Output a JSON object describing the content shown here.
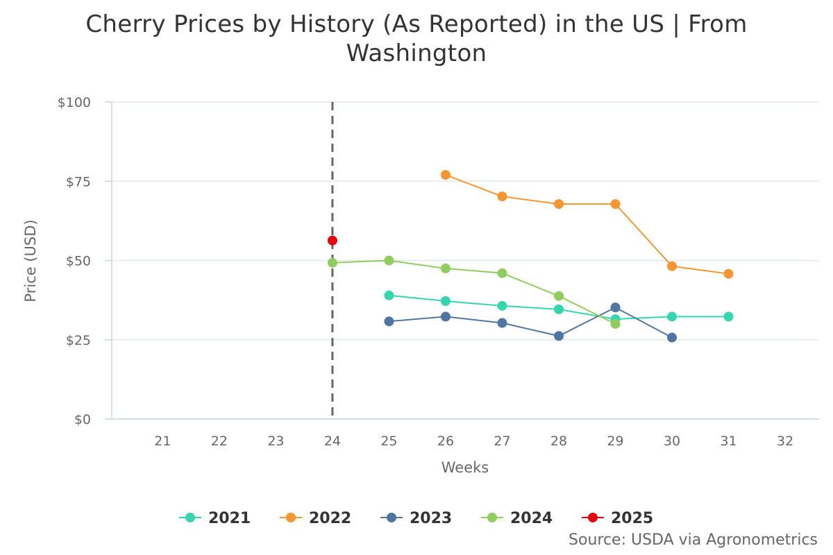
{
  "chart_data": {
    "type": "line",
    "title": "Cherry Prices by History (As Reported) in the US | From Washington",
    "xlabel": "Weeks",
    "ylabel": "Price (USD)",
    "categories": [
      21,
      22,
      23,
      24,
      25,
      26,
      27,
      28,
      29,
      30,
      31,
      32
    ],
    "xlim": [
      20.1,
      32.6
    ],
    "ylim": [
      0,
      100
    ],
    "yticks": [
      0,
      25,
      50,
      75,
      100
    ],
    "ytick_labels": [
      "$0",
      "$25",
      "$50",
      "$75",
      "$100"
    ],
    "marker_line": {
      "x": 24,
      "style": "dashed"
    },
    "legend_position": "bottom-center",
    "series": [
      {
        "name": "2021",
        "color": "#34d6b0",
        "x": [
          25,
          26,
          27,
          28,
          29,
          30,
          31
        ],
        "values": [
          39,
          37.2,
          35.7,
          34.6,
          31.5,
          32.3,
          32.3
        ]
      },
      {
        "name": "2022",
        "color": "#f7962e",
        "x": [
          26,
          27,
          28,
          29,
          30,
          31
        ],
        "values": [
          77,
          70.2,
          67.8,
          67.8,
          48.2,
          45.8
        ]
      },
      {
        "name": "2023",
        "color": "#4f76a2",
        "x": [
          25,
          26,
          27,
          28,
          29,
          30
        ],
        "values": [
          30.8,
          32.3,
          30.3,
          26.2,
          35.2,
          25.7
        ]
      },
      {
        "name": "2024",
        "color": "#8fce5c",
        "x": [
          24,
          25,
          26,
          27,
          28,
          29
        ],
        "values": [
          49.3,
          50,
          47.5,
          46,
          38.8,
          30
        ]
      },
      {
        "name": "2025",
        "color": "#e8000b",
        "x": [
          24
        ],
        "values": [
          56.3
        ]
      }
    ]
  },
  "source": "Source: USDA via Agronometrics"
}
